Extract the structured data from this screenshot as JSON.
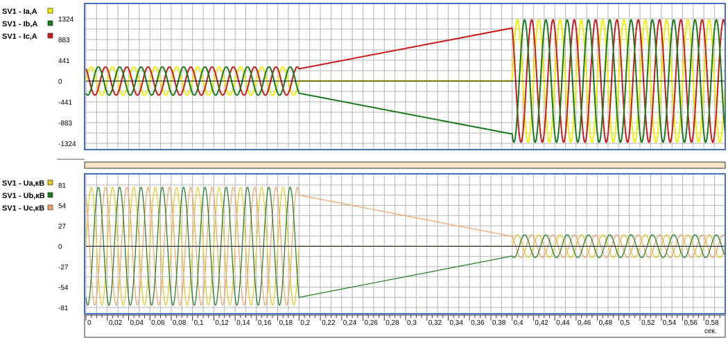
{
  "chart_data": [
    {
      "type": "line",
      "legend_position": "left",
      "grid": true,
      "series": [
        {
          "name": "SV1 - Ia,A",
          "color": "#f0f000"
        },
        {
          "name": "SV1 - Ib,A",
          "color": "#1a7a1a"
        },
        {
          "name": "SV1 - Ic,A",
          "color": "#cc1a1a"
        }
      ],
      "ylim": [
        -1324,
        1324
      ],
      "yticks": [
        "1324",
        "883",
        "441",
        "0",
        "-441",
        "-883",
        "-1324"
      ],
      "ytick_values": [
        1324,
        883,
        441,
        0,
        -441,
        -883,
        -1324
      ],
      "segments": [
        {
          "x_start": 0,
          "x_end": 0.2,
          "amplitude": 300,
          "freq": 50
        },
        {
          "x_start": 0.4,
          "x_end": 0.6,
          "amplitude": 1300,
          "freq": 50
        }
      ]
    },
    {
      "type": "line",
      "legend_position": "left",
      "grid": true,
      "series": [
        {
          "name": "SV1 - Ua,кВ",
          "color": "#e6c81a"
        },
        {
          "name": "SV1 - Ub,кВ",
          "color": "#1a7a1a"
        },
        {
          "name": "SV1 - Uc,кВ",
          "color": "#f0a060"
        }
      ],
      "ylim": [
        -81,
        81
      ],
      "yticks": [
        "81",
        "54",
        "27",
        "0",
        "-27",
        "-54",
        "-81"
      ],
      "ytick_values": [
        81,
        54,
        27,
        0,
        -27,
        -54,
        -81
      ],
      "segments": [
        {
          "x_start": 0,
          "x_end": 0.2,
          "amplitude": 78,
          "freq": 50
        },
        {
          "x_start": 0.4,
          "x_end": 0.6,
          "amplitude": 15,
          "freq": 50
        }
      ]
    }
  ],
  "x_axis": {
    "xlim": [
      0,
      0.6
    ],
    "ticks": [
      "0",
      "0,02",
      "0,04",
      "0,06",
      "0,08",
      "0,1",
      "0,12",
      "0,14",
      "0,16",
      "0,18",
      "0,2",
      "0,22",
      "0,24",
      "0,26",
      "0,28",
      "0,3",
      "0,32",
      "0,34",
      "0,36",
      "0,38",
      "0,4",
      "0,42",
      "0,44",
      "0,46",
      "0,48",
      "0,5",
      "0,52",
      "0,54",
      "0,56",
      "0,58"
    ],
    "tick_values": [
      0,
      0.02,
      0.04,
      0.06,
      0.08,
      0.1,
      0.12,
      0.14,
      0.16,
      0.18,
      0.2,
      0.22,
      0.24,
      0.26,
      0.28,
      0.3,
      0.32,
      0.34,
      0.36,
      0.38,
      0.4,
      0.42,
      0.44,
      0.46,
      0.48,
      0.5,
      0.52,
      0.54,
      0.56,
      0.58
    ],
    "unit": "сек."
  },
  "colors": {
    "frame": "#4a6fc0",
    "grid": "#b4b4b4",
    "separator_fill": "#f8e4c8"
  }
}
